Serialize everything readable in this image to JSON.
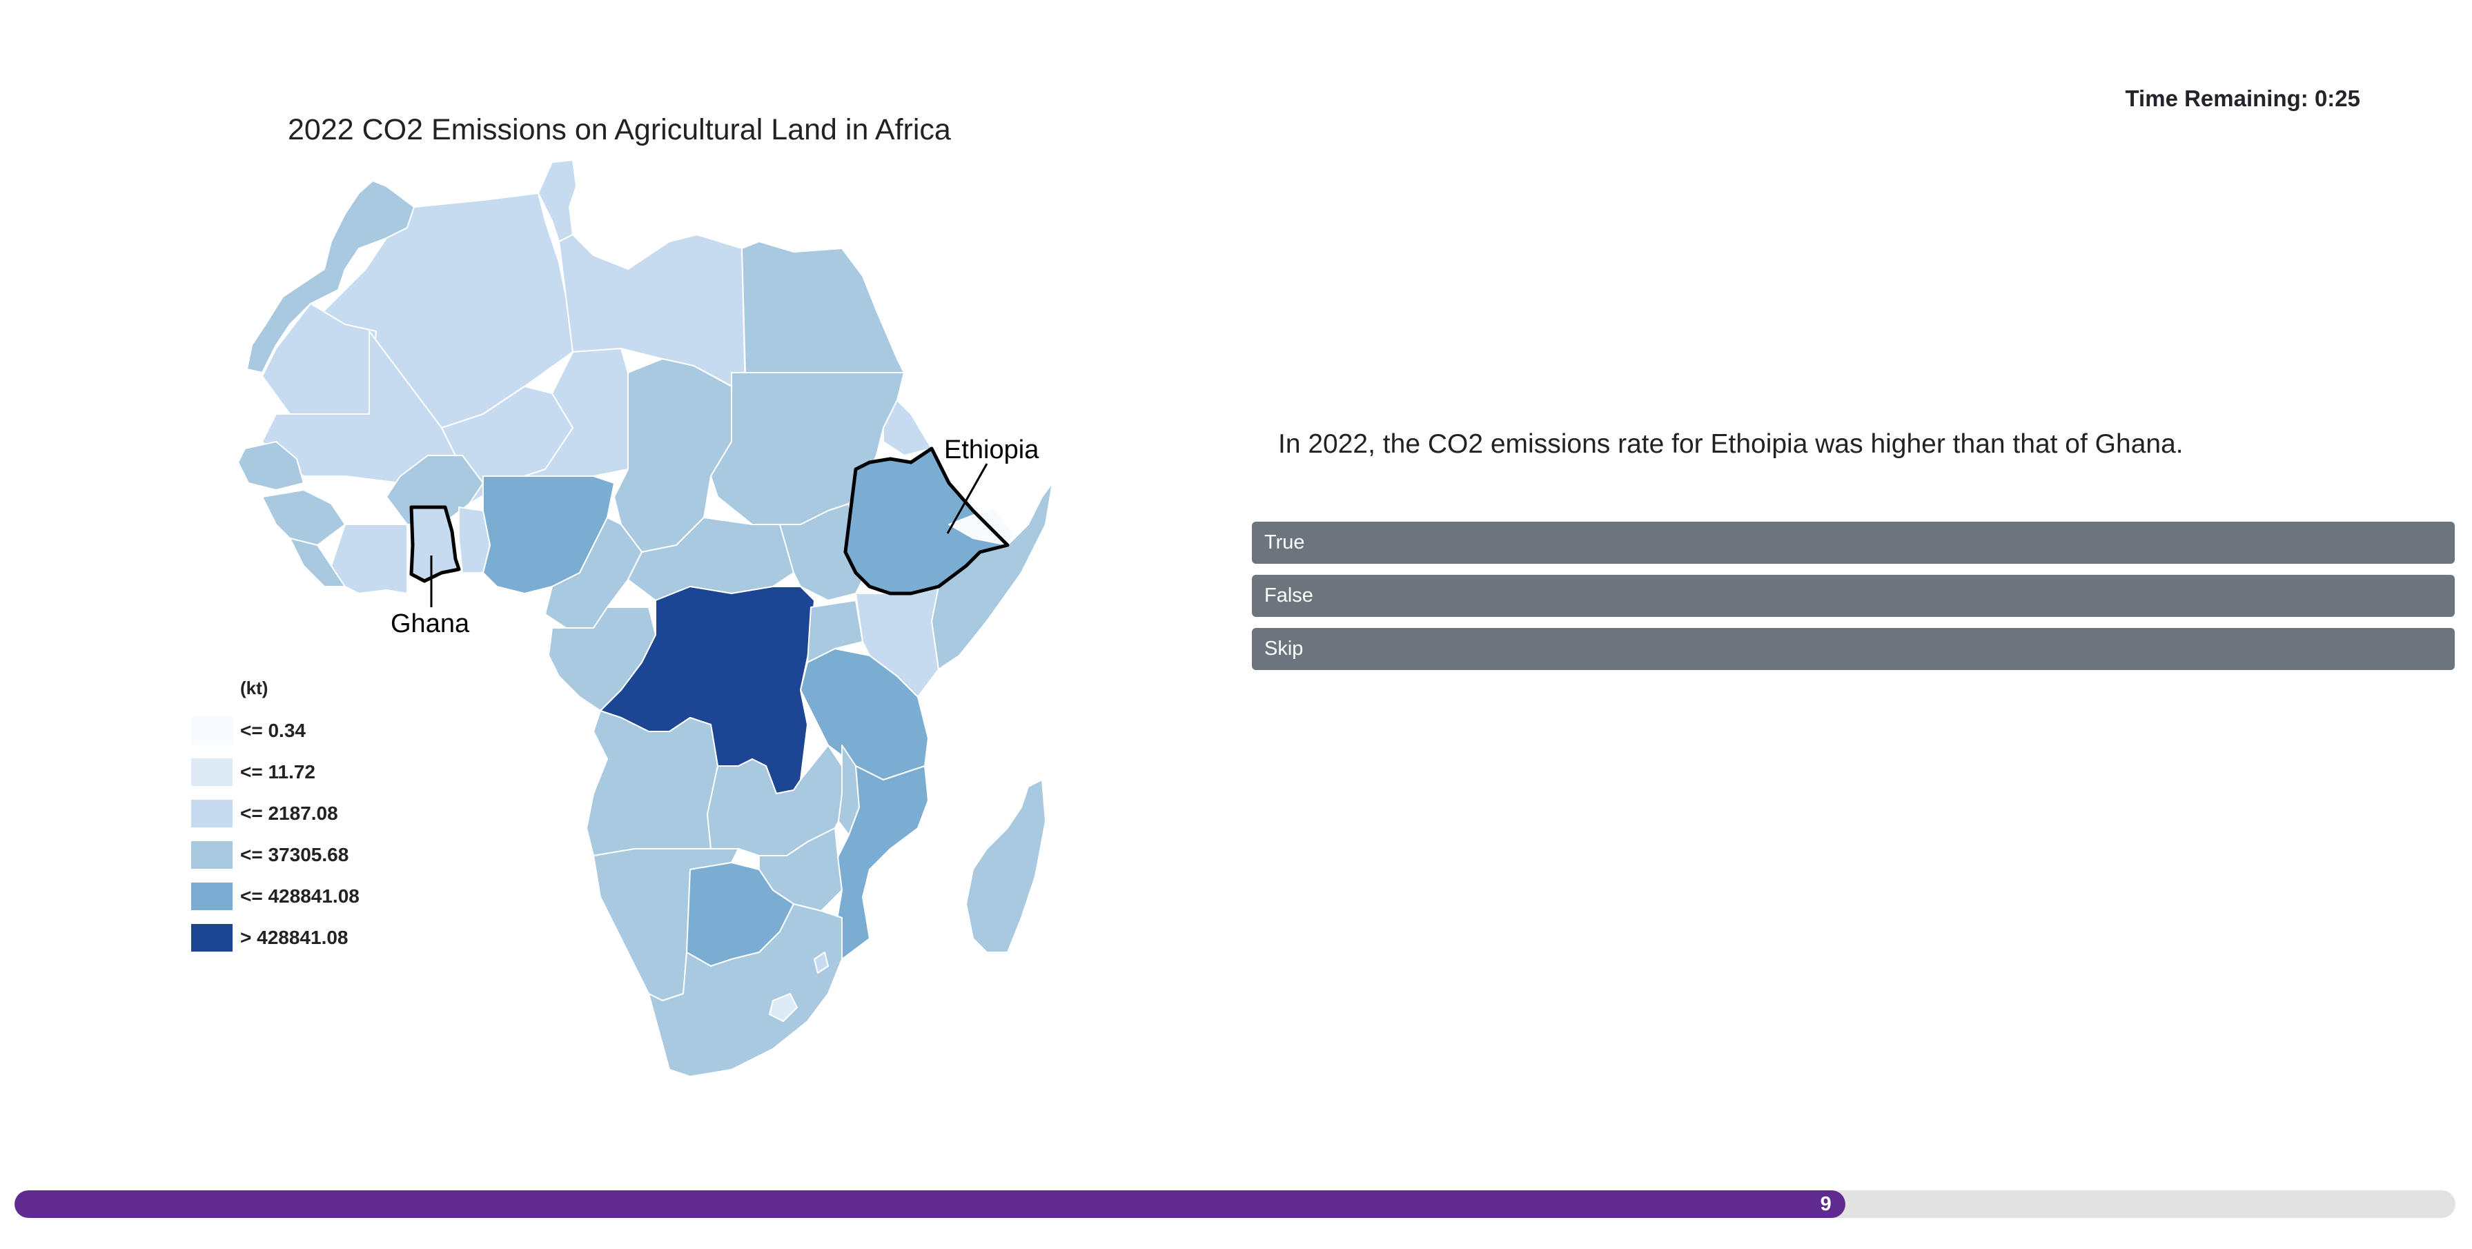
{
  "timer": {
    "label": "Time Remaining: 0:25"
  },
  "map": {
    "title": "2022 CO2 Emissions on Agricultural Land in Africa",
    "highlighted": [
      {
        "country": "Ethiopia",
        "label": "Ethiopia"
      },
      {
        "country": "Ghana",
        "label": "Ghana"
      }
    ],
    "legend": {
      "unit": "(kt)",
      "items": [
        {
          "label": "<= 0.34",
          "color": "#f7fbff"
        },
        {
          "label": "<= 11.72",
          "color": "#deebf7"
        },
        {
          "label": "<= 2187.08",
          "color": "#c6dbef"
        },
        {
          "label": "<= 37305.68",
          "color": "#a8c9e0"
        },
        {
          "label": "<= 428841.08",
          "color": "#7badd3"
        },
        {
          "label": "> 428841.08",
          "color": "#1c4593"
        }
      ]
    }
  },
  "question": {
    "text": "In 2022, the CO2 emissions rate for Ethoipia was higher than that of Ghana.",
    "answers": [
      "True",
      "False",
      "Skip"
    ]
  },
  "progress": {
    "label": "9",
    "fraction": 0.75
  }
}
